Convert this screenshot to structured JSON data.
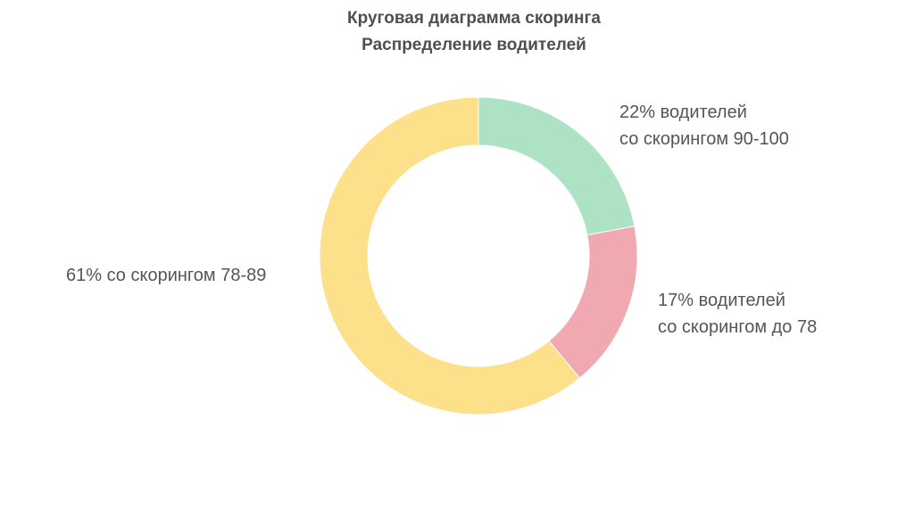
{
  "chart_data": {
    "type": "pie",
    "title": "Круговая диаграмма скоринга",
    "subtitle": "Распределение водителей",
    "values": [
      22,
      17,
      61
    ],
    "colors": [
      "#ade2c5",
      "#f0a9b0",
      "#fde08a"
    ],
    "slice_labels": [
      [
        "22% водителей",
        "со скорингом 90-100"
      ],
      [
        "17% водителей",
        "со скорингом до 78"
      ],
      [
        "61% со скорингом 78-89"
      ]
    ]
  }
}
